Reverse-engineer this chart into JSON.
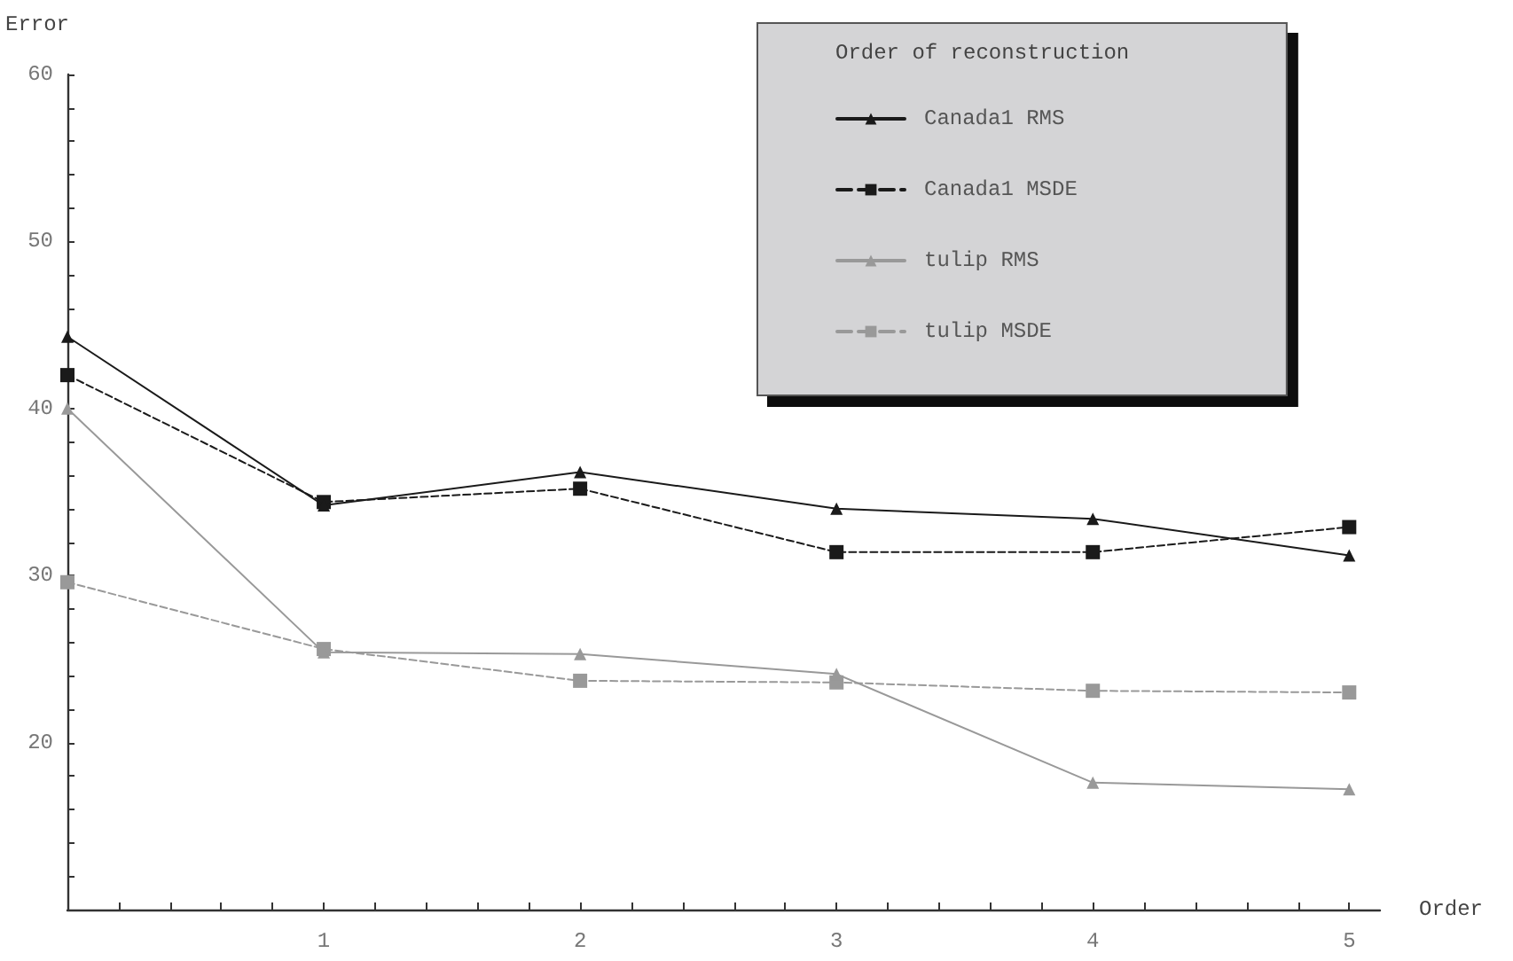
{
  "chart_data": {
    "type": "line",
    "xlabel": "Order",
    "ylabel": "Error",
    "legend_title": "Order of reconstruction",
    "legend": "top right",
    "grid": false,
    "x": [
      0,
      1,
      2,
      3,
      4,
      5
    ],
    "xlim": [
      0,
      5.12
    ],
    "xticks": [
      {
        "value": 0,
        "label": null
      },
      {
        "value": 0.2,
        "label": null
      },
      {
        "value": 0.4,
        "label": null
      },
      {
        "value": 0.6,
        "label": null
      },
      {
        "value": 0.8,
        "label": null
      },
      1,
      {
        "value": 1.2,
        "label": null
      },
      {
        "value": 1.4,
        "label": null
      },
      {
        "value": 1.6,
        "label": null
      },
      {
        "value": 1.8,
        "label": null
      },
      2,
      {
        "value": 2.2,
        "label": null
      },
      {
        "value": 2.4,
        "label": null
      },
      {
        "value": 2.6,
        "label": null
      },
      {
        "value": 2.8,
        "label": null
      },
      3,
      {
        "value": 3.2,
        "label": null
      },
      {
        "value": 3.4,
        "label": null
      },
      {
        "value": 3.6,
        "label": null
      },
      {
        "value": 3.8,
        "label": null
      },
      4,
      {
        "value": 4.2,
        "label": null
      },
      {
        "value": 4.4,
        "label": null
      },
      {
        "value": 4.6,
        "label": null
      },
      {
        "value": 4.8,
        "label": null
      },
      5
    ],
    "ylim": [
      10,
      60
    ],
    "yticks": [
      {
        "value": 12,
        "label": null
      },
      {
        "value": 14,
        "label": null
      },
      {
        "value": 16,
        "label": null
      },
      {
        "value": 18,
        "label": null
      },
      20,
      {
        "value": 22,
        "label": null
      },
      {
        "value": 24,
        "label": null
      },
      {
        "value": 26,
        "label": null
      },
      {
        "value": 28,
        "label": null
      },
      30,
      {
        "value": 32,
        "label": null
      },
      {
        "value": 34,
        "label": null
      },
      {
        "value": 36,
        "label": null
      },
      {
        "value": 38,
        "label": null
      },
      40,
      {
        "value": 42,
        "label": null
      },
      {
        "value": 44,
        "label": null
      },
      {
        "value": 46,
        "label": null
      },
      {
        "value": 48,
        "label": null
      },
      50,
      {
        "value": 52,
        "label": null
      },
      {
        "value": 54,
        "label": null
      },
      {
        "value": 56,
        "label": null
      },
      {
        "value": 58,
        "label": null
      },
      60
    ],
    "series": [
      {
        "name": "Canada1 RMS",
        "color": "#1a1a1a",
        "marker": "triangle",
        "line_style": "solid",
        "values": [
          44.3,
          34.2,
          36.2,
          34.0,
          33.4,
          31.2
        ]
      },
      {
        "name": "Canada1 MSDE",
        "color": "#1a1a1a",
        "marker": "square",
        "line_style": "dashed",
        "values": [
          42.0,
          34.4,
          35.2,
          31.4,
          31.4,
          32.9
        ]
      },
      {
        "name": "tulip RMS",
        "color": "#999999",
        "marker": "triangle",
        "line_style": "solid",
        "values": [
          40.0,
          25.4,
          25.3,
          24.1,
          17.6,
          17.2
        ]
      },
      {
        "name": "tulip MSDE",
        "color": "#999999",
        "marker": "square",
        "line_style": "dashed",
        "values": [
          29.6,
          25.6,
          23.7,
          23.6,
          23.1,
          23.0
        ]
      }
    ]
  }
}
